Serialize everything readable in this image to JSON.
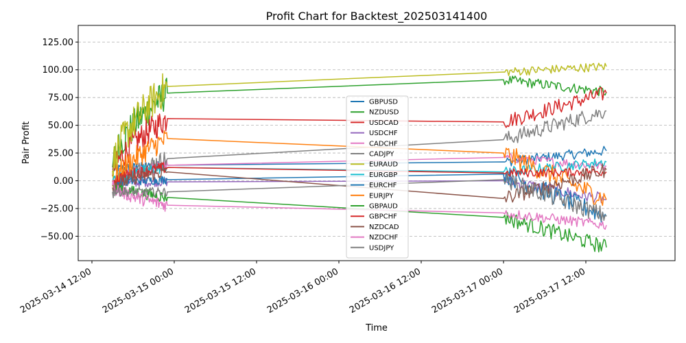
{
  "chart_data": {
    "type": "line",
    "title": "Profit Chart for Backtest_202503141400",
    "xlabel": "Time",
    "ylabel": "Pair Profit",
    "grid": "y-dashed",
    "legend_position": "center",
    "xlim": [
      "2025-03-14 10:00",
      "2025-03-18 01:00"
    ],
    "ylim": [
      -72,
      140
    ],
    "x_ticks": [
      "2025-03-14 12:00",
      "2025-03-15 00:00",
      "2025-03-15 12:00",
      "2025-03-16 00:00",
      "2025-03-16 12:00",
      "2025-03-17 00:00",
      "2025-03-17 12:00"
    ],
    "y_ticks": [
      -50,
      -25,
      0,
      25,
      50,
      75,
      100,
      125
    ],
    "y_tick_labels": [
      "−50.00",
      "−25.00",
      "0.00",
      "25.00",
      "50.00",
      "75.00",
      "100.00",
      "125.00"
    ],
    "series": [
      {
        "name": "GBPUSD",
        "color": "#1f77b4",
        "start": 10,
        "mid": 14,
        "seg2_end": 17,
        "final": 27
      },
      {
        "name": "NZDUSD",
        "color": "#2ca02c",
        "start": 12,
        "mid": 79,
        "seg2_end": 91,
        "final": 80
      },
      {
        "name": "USDCAD",
        "color": "#d62728",
        "start": 4,
        "mid": 56,
        "seg2_end": 53,
        "final": 79
      },
      {
        "name": "USDCHF",
        "color": "#9467bd",
        "start": -3,
        "mid": -1,
        "seg2_end": 0,
        "final": -17
      },
      {
        "name": "CADCHF",
        "color": "#e377c2",
        "start": -5,
        "mid": 14,
        "seg2_end": 21,
        "final": 13
      },
      {
        "name": "CADJPY",
        "color": "#7f7f7f",
        "start": -10,
        "mid": 20,
        "seg2_end": 37,
        "final": 63
      },
      {
        "name": "EURAUD",
        "color": "#bcbd22",
        "start": 9,
        "mid": 85,
        "seg2_end": 98,
        "final": 103
      },
      {
        "name": "EURGBP",
        "color": "#17becf",
        "start": 1,
        "mid": 12,
        "seg2_end": 8,
        "final": 17
      },
      {
        "name": "EURCHF",
        "color": "#1f77b4",
        "start": -2,
        "mid": 1,
        "seg2_end": 6,
        "final": -32
      },
      {
        "name": "EURJPY",
        "color": "#ff7f0e",
        "start": -5,
        "mid": 38,
        "seg2_end": 25,
        "final": -17
      },
      {
        "name": "GBPAUD",
        "color": "#2ca02c",
        "start": -3,
        "mid": -15,
        "seg2_end": -33,
        "final": -60
      },
      {
        "name": "GBPCHF",
        "color": "#d62728",
        "start": -1,
        "mid": 12,
        "seg2_end": 7,
        "final": 8
      },
      {
        "name": "NZDCAD",
        "color": "#8c564b",
        "start": -6,
        "mid": 8,
        "seg2_end": -16,
        "final": 10
      },
      {
        "name": "NZDCHF",
        "color": "#e377c2",
        "start": -4,
        "mid": -22,
        "seg2_end": -29,
        "final": -40
      },
      {
        "name": "USDJPY",
        "color": "#7f7f7f",
        "start": -10,
        "mid": -10,
        "seg2_end": 1,
        "final": -32
      }
    ]
  }
}
